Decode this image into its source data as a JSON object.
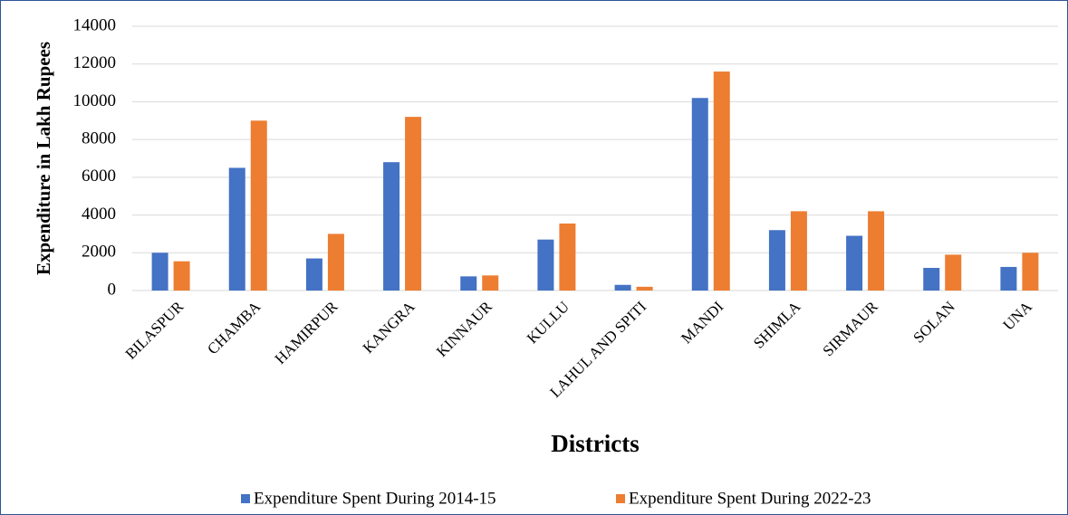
{
  "chart_data": {
    "type": "bar",
    "x_label": "Districts",
    "y_label": "Expenditure in Lakh Rupees",
    "categories": [
      "BILASPUR",
      "CHAMBA",
      "HAMIRPUR",
      "KANGRA",
      "KINNAUR",
      "KULLU",
      "LAHUL AND SPITI",
      "MANDI",
      "SHIMLA",
      "SIRMAUR",
      "SOLAN",
      "UNA"
    ],
    "series": [
      {
        "name": "Expenditure Spent During 2014-15",
        "color": "#4472c4",
        "values": [
          2000,
          6500,
          1700,
          6800,
          750,
          2700,
          300,
          10200,
          3200,
          2900,
          1200,
          1250
        ]
      },
      {
        "name": "Expenditure Spent During 2022-23",
        "color": "#ed7d31",
        "values": [
          1550,
          9000,
          3000,
          9200,
          800,
          3550,
          200,
          11600,
          4200,
          4200,
          1900,
          2000
        ]
      }
    ],
    "ylim": [
      0,
      14000
    ],
    "yticks": [
      0,
      2000,
      4000,
      6000,
      8000,
      10000,
      12000,
      14000
    ],
    "grid": true,
    "legend": "bottom"
  }
}
